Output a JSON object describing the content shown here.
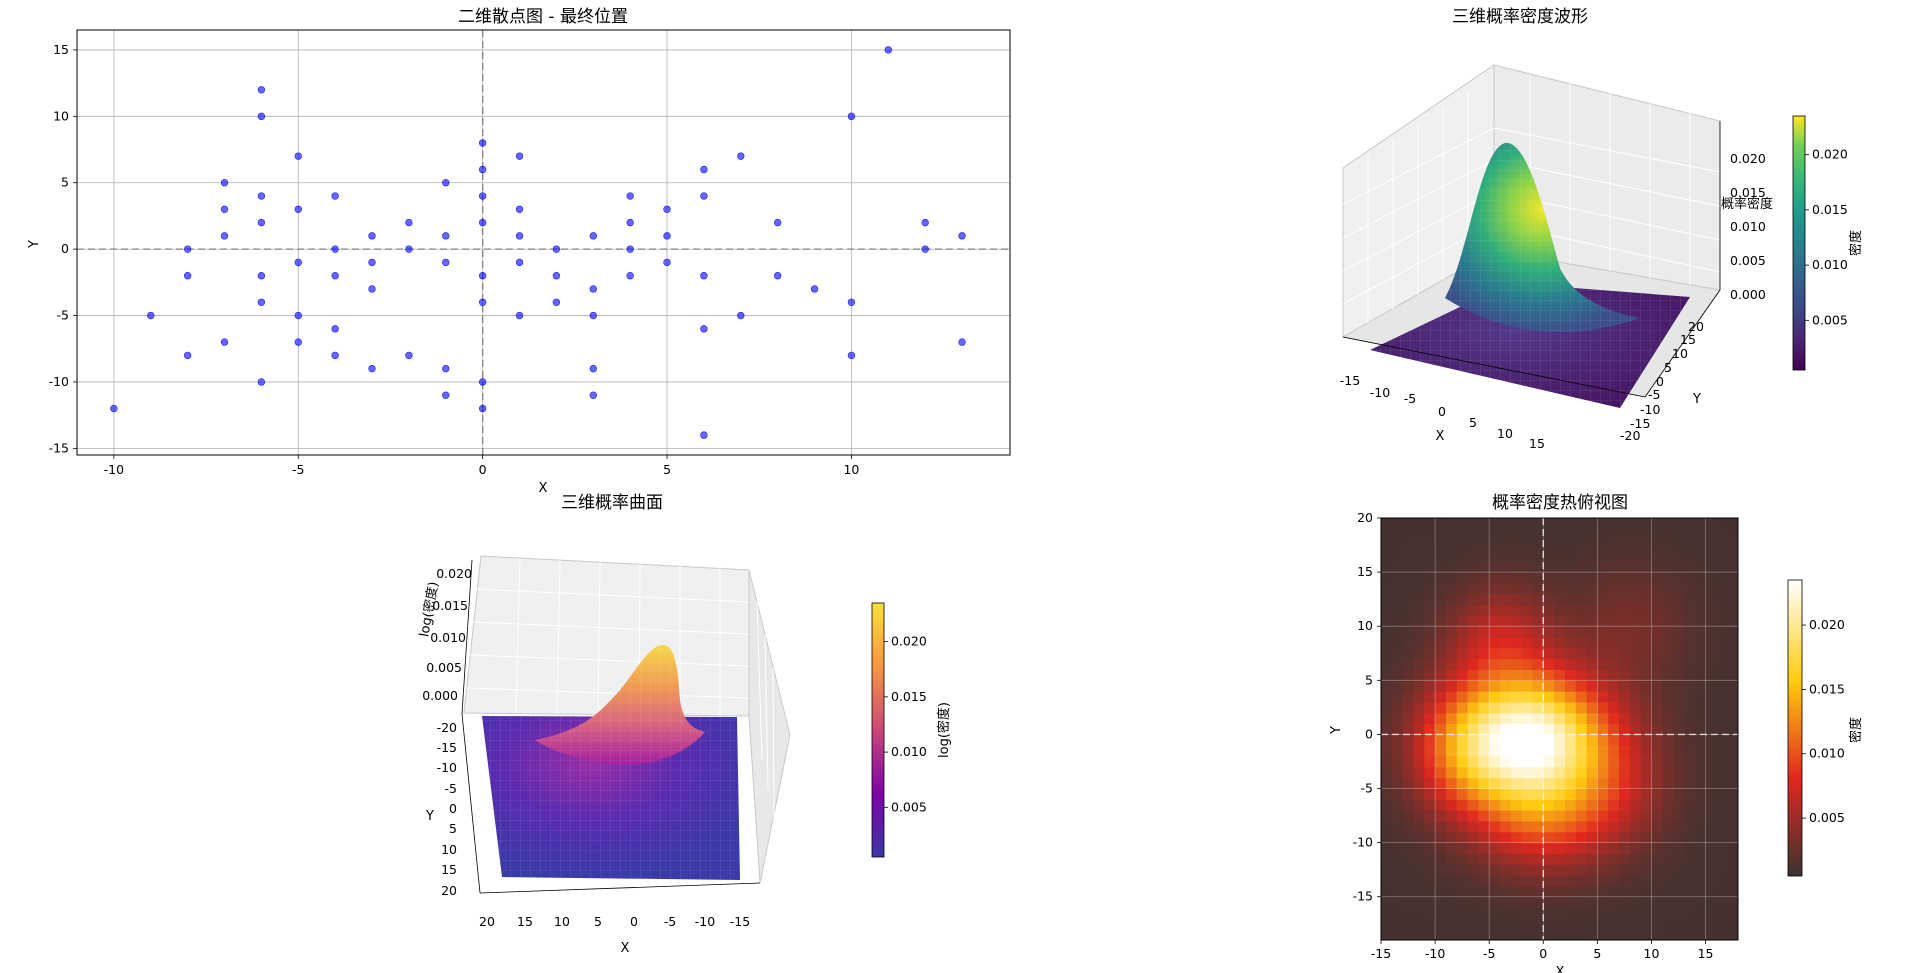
{
  "chart_data": [
    {
      "type": "scatter",
      "title": "二维散点图 - 最终位置",
      "xlabel": "X",
      "ylabel": "Y",
      "xlim": [
        -11,
        14.3
      ],
      "ylim": [
        -15.5,
        16.5
      ],
      "xticks": [
        "-10",
        "-5",
        "0",
        "5",
        "10"
      ],
      "xtick_values": [
        -10,
        -5,
        0,
        5,
        10
      ],
      "yticks": [
        "15",
        "10",
        "5",
        "0",
        "-5",
        "-10",
        "-15"
      ],
      "ytick_values": [
        15,
        10,
        5,
        0,
        -5,
        -10,
        -15
      ],
      "grid": true,
      "reference_lines": {
        "x": 0,
        "y": 0
      },
      "marker_color": "#0000ff",
      "points": [
        [
          -10,
          -12
        ],
        [
          -9,
          -5
        ],
        [
          -8,
          0
        ],
        [
          -8,
          -2
        ],
        [
          -8,
          -8
        ],
        [
          -7,
          5
        ],
        [
          -7,
          3
        ],
        [
          -7,
          1
        ],
        [
          -7,
          -7
        ],
        [
          -6,
          12
        ],
        [
          -6,
          10
        ],
        [
          -6,
          4
        ],
        [
          -6,
          2
        ],
        [
          -6,
          -2
        ],
        [
          -6,
          -4
        ],
        [
          -6,
          -10
        ],
        [
          -5,
          7
        ],
        [
          -5,
          3
        ],
        [
          -5,
          -1
        ],
        [
          -5,
          -5
        ],
        [
          -5,
          -7
        ],
        [
          -4,
          4
        ],
        [
          -4,
          0
        ],
        [
          -4,
          -2
        ],
        [
          -4,
          -6
        ],
        [
          -4,
          -8
        ],
        [
          -3,
          1
        ],
        [
          -3,
          -1
        ],
        [
          -3,
          -3
        ],
        [
          -3,
          -9
        ],
        [
          -2,
          2
        ],
        [
          -2,
          0
        ],
        [
          -2,
          -8
        ],
        [
          -1,
          5
        ],
        [
          -1,
          1
        ],
        [
          -1,
          -1
        ],
        [
          -1,
          -9
        ],
        [
          -1,
          -11
        ],
        [
          0,
          8
        ],
        [
          0,
          6
        ],
        [
          0,
          4
        ],
        [
          0,
          2
        ],
        [
          0,
          -2
        ],
        [
          0,
          -4
        ],
        [
          0,
          -10
        ],
        [
          0,
          -12
        ],
        [
          1,
          7
        ],
        [
          1,
          3
        ],
        [
          1,
          1
        ],
        [
          1,
          -1
        ],
        [
          1,
          -5
        ],
        [
          2,
          0
        ],
        [
          2,
          -2
        ],
        [
          2,
          -4
        ],
        [
          3,
          1
        ],
        [
          3,
          -3
        ],
        [
          3,
          -5
        ],
        [
          3,
          -9
        ],
        [
          3,
          -11
        ],
        [
          4,
          4
        ],
        [
          4,
          2
        ],
        [
          4,
          0
        ],
        [
          4,
          -2
        ],
        [
          5,
          3
        ],
        [
          5,
          1
        ],
        [
          5,
          -1
        ],
        [
          6,
          6
        ],
        [
          6,
          4
        ],
        [
          6,
          -2
        ],
        [
          6,
          -6
        ],
        [
          6,
          -14
        ],
        [
          7,
          7
        ],
        [
          7,
          -5
        ],
        [
          8,
          2
        ],
        [
          8,
          -2
        ],
        [
          9,
          -3
        ],
        [
          10,
          10
        ],
        [
          10,
          -4
        ],
        [
          10,
          -8
        ],
        [
          11,
          15
        ],
        [
          12,
          2
        ],
        [
          12,
          0
        ],
        [
          13,
          1
        ],
        [
          13,
          -7
        ]
      ]
    },
    {
      "type": "surface3d",
      "title": "三维概率密度波形",
      "xlabel": "X",
      "ylabel": "Y",
      "zlabel": "概率密度",
      "colormap": "viridis",
      "xticks": [
        "-15",
        "-10",
        "-5",
        "0",
        "5",
        "10",
        "15"
      ],
      "yticks": [
        "20",
        "15",
        "10",
        "5",
        "0",
        "-5",
        "-10",
        "-15",
        "-20"
      ],
      "zticks": [
        "0.020",
        "0.015",
        "0.010",
        "0.005",
        "0.000"
      ],
      "zlim": [
        0,
        0.024
      ],
      "colorbar": {
        "label": "密度",
        "ticks": [
          "0.020",
          "0.015",
          "0.010",
          "0.005"
        ],
        "range": [
          0.0005,
          0.0235
        ]
      }
    },
    {
      "type": "surface3d",
      "title": "三维概率曲面",
      "xlabel": "X",
      "ylabel": "Y",
      "zlabel": "log(密度)",
      "colormap": "plasma",
      "xticks": [
        "20",
        "15",
        "10",
        "5",
        "0",
        "-5",
        "-10",
        "-15"
      ],
      "yticks": [
        "-20",
        "-15",
        "-10",
        "-5",
        "0",
        "5",
        "10",
        "15",
        "20"
      ],
      "zticks": [
        "0.020",
        "0.015",
        "0.010",
        "0.005",
        "0.000"
      ],
      "zlim": [
        0,
        0.024
      ],
      "colorbar": {
        "label": "log(密度)",
        "ticks": [
          "0.020",
          "0.015",
          "0.010",
          "0.005"
        ],
        "range": [
          0.0005,
          0.0235
        ]
      }
    },
    {
      "type": "heatmap",
      "title": "概率密度热俯视图",
      "xlabel": "X",
      "ylabel": "Y",
      "colormap": "hot",
      "xlim": [
        -15,
        18
      ],
      "ylim": [
        -19,
        20
      ],
      "xticks": [
        "-15",
        "-10",
        "-5",
        "0",
        "5",
        "10",
        "15"
      ],
      "xtick_values": [
        -15,
        -10,
        -5,
        0,
        5,
        10,
        15
      ],
      "yticks": [
        "20",
        "15",
        "10",
        "5",
        "0",
        "-5",
        "-10",
        "-15"
      ],
      "ytick_values": [
        20,
        15,
        10,
        5,
        0,
        -5,
        -10,
        -15
      ],
      "grid": true,
      "reference_lines": {
        "x": 0,
        "y": 0
      },
      "peak": {
        "x": -1.5,
        "y": -0.5,
        "value": 0.0235
      },
      "colorbar": {
        "label": "密度",
        "ticks": [
          "0.020",
          "0.015",
          "0.010",
          "0.005"
        ],
        "range": [
          0.0005,
          0.0235
        ]
      }
    }
  ]
}
